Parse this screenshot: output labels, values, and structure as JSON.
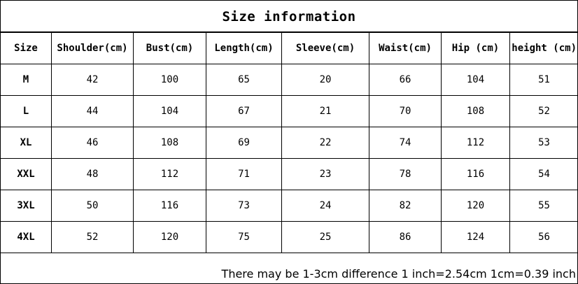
{
  "title": "Size information",
  "columns": [
    "Size",
    "Shoulder(cm)",
    "Bust(cm)",
    "Length(cm)",
    "Sleeve(cm)",
    "Waist(cm)",
    "Hip (cm)",
    "height (cm)"
  ],
  "rows": [
    [
      "M",
      "42",
      "100",
      "65",
      "20",
      "66",
      "104",
      "51"
    ],
    [
      "L",
      "44",
      "104",
      "67",
      "21",
      "70",
      "108",
      "52"
    ],
    [
      "XL",
      "46",
      "108",
      "69",
      "22",
      "74",
      "112",
      "53"
    ],
    [
      "XXL",
      "48",
      "112",
      "71",
      "23",
      "78",
      "116",
      "54"
    ],
    [
      "3XL",
      "50",
      "116",
      "73",
      "24",
      "82",
      "120",
      "55"
    ],
    [
      "4XL",
      "52",
      "120",
      "75",
      "25",
      "86",
      "124",
      "56"
    ]
  ],
  "note": "There may be 1-3cm difference 1 inch=2.54cm 1cm=0.39 inch"
}
